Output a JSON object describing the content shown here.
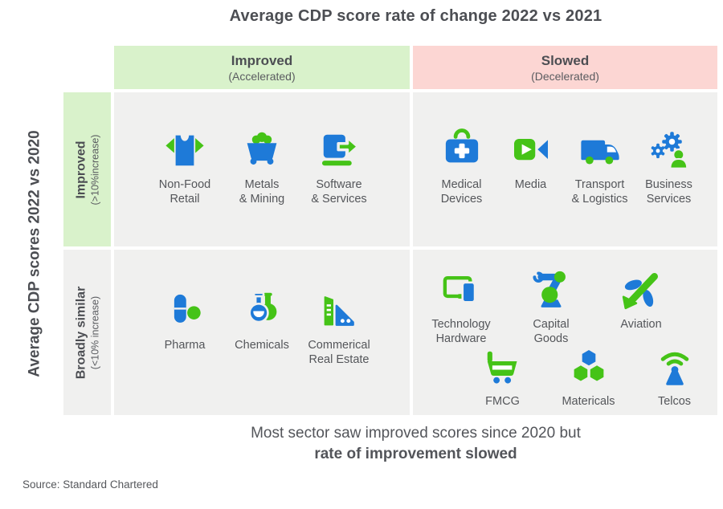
{
  "title": "Average CDP score rate of change 2022 vs 2021",
  "y_axis_label": "Average CDP scores 2022 vs 2020",
  "col_headers": [
    {
      "label": "Improved",
      "sublabel": "(Accelerated)"
    },
    {
      "label": "Slowed",
      "sublabel": "(Decelerated)"
    }
  ],
  "row_headers": [
    {
      "label": "Improved",
      "sublabel": "(>10%increase)"
    },
    {
      "label": "Broadly similar",
      "sublabel": "(<10% increase)"
    }
  ],
  "cells": {
    "improved_improved": [
      {
        "label": "Non-Food\nRetail",
        "icon": "tshirt-icon"
      },
      {
        "label": "Metals\n& Mining",
        "icon": "minecart-icon"
      },
      {
        "label": "Software\n& Services",
        "icon": "laptop-arrow-icon"
      }
    ],
    "improved_slowed": [
      {
        "label": "Medical\nDevices",
        "icon": "medical-bag-icon"
      },
      {
        "label": "Media",
        "icon": "video-camera-icon"
      },
      {
        "label": "Transport\n& Logistics",
        "icon": "van-icon"
      },
      {
        "label": "Business\nServices",
        "icon": "gears-person-icon"
      }
    ],
    "similar_improved": [
      {
        "label": "Pharma",
        "icon": "pill-icon"
      },
      {
        "label": "Chemicals",
        "icon": "flask-icon"
      },
      {
        "label": "Commerical\nReal Estate",
        "icon": "buildings-icon"
      }
    ],
    "similar_slowed_row1": [
      {
        "label": "Technology\nHardware",
        "icon": "devices-icon"
      },
      {
        "label": "Capital\nGoods",
        "icon": "robot-arm-icon"
      },
      {
        "label": "Aviation",
        "icon": "airplane-icon"
      }
    ],
    "similar_slowed_row2": [
      {
        "label": "FMCG",
        "icon": "shopping-cart-icon"
      },
      {
        "label": "Matericals",
        "icon": "hexagons-icon"
      },
      {
        "label": "Telcos",
        "icon": "antenna-icon"
      }
    ]
  },
  "caption": {
    "line1": "Most sector saw improved scores since 2020 but",
    "line2": "rate of improvement slowed"
  },
  "source": "Source: Standard Chartered",
  "colors": {
    "blue": "#1e7ad8",
    "green": "#45c317",
    "green_bg": "#d9f2cb",
    "pink_bg": "#fcd6d3",
    "cell_bg": "#f0f0ef",
    "heading_text": "#4c4e53",
    "body_text": "#54565a"
  }
}
